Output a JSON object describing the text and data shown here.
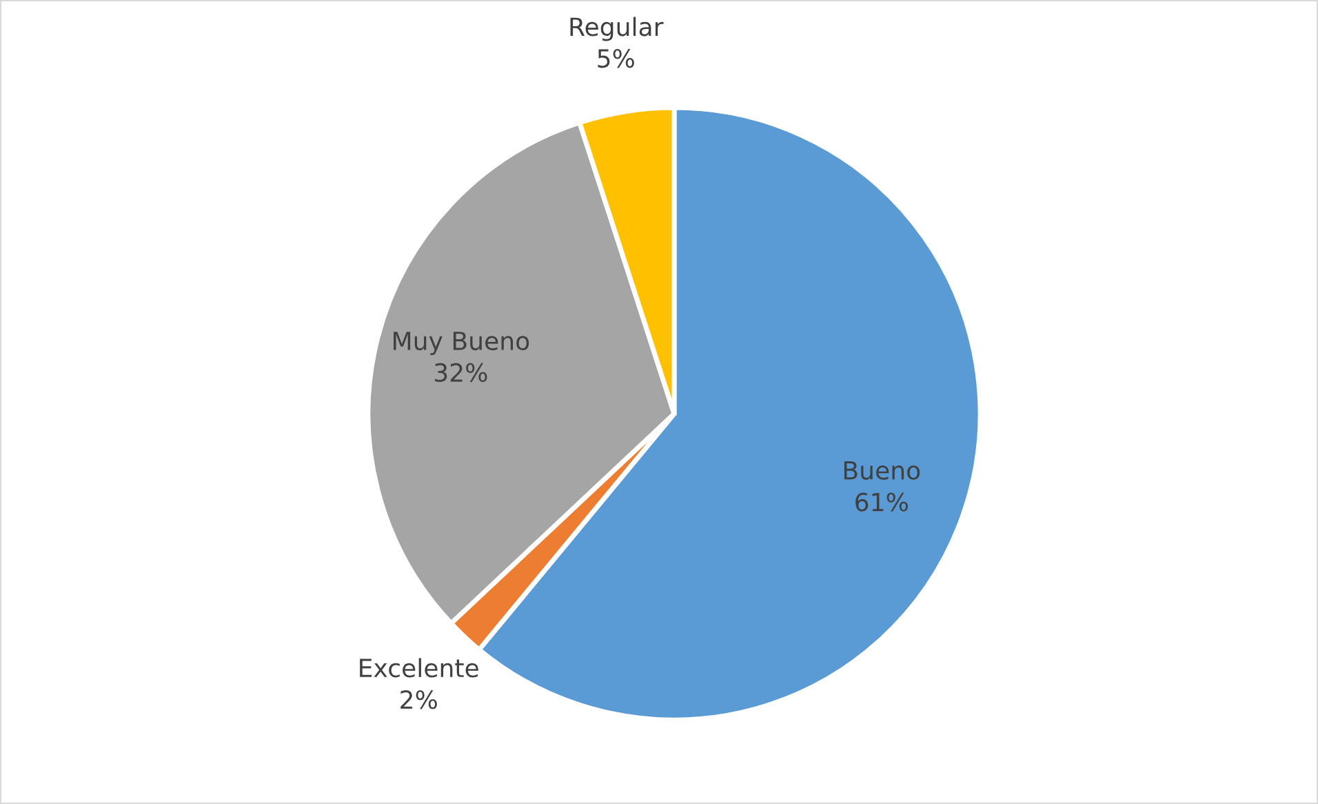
{
  "chart_data": {
    "type": "pie",
    "categories": [
      "Bueno",
      "Excelente",
      "Muy Bueno",
      "Regular"
    ],
    "values": [
      61,
      2,
      32,
      5
    ],
    "colors": [
      "#5b9bd5",
      "#ed7d31",
      "#a5a5a5",
      "#ffc000"
    ],
    "value_labels": [
      "61%",
      "2%",
      "32%",
      "5%"
    ],
    "legend": false
  }
}
